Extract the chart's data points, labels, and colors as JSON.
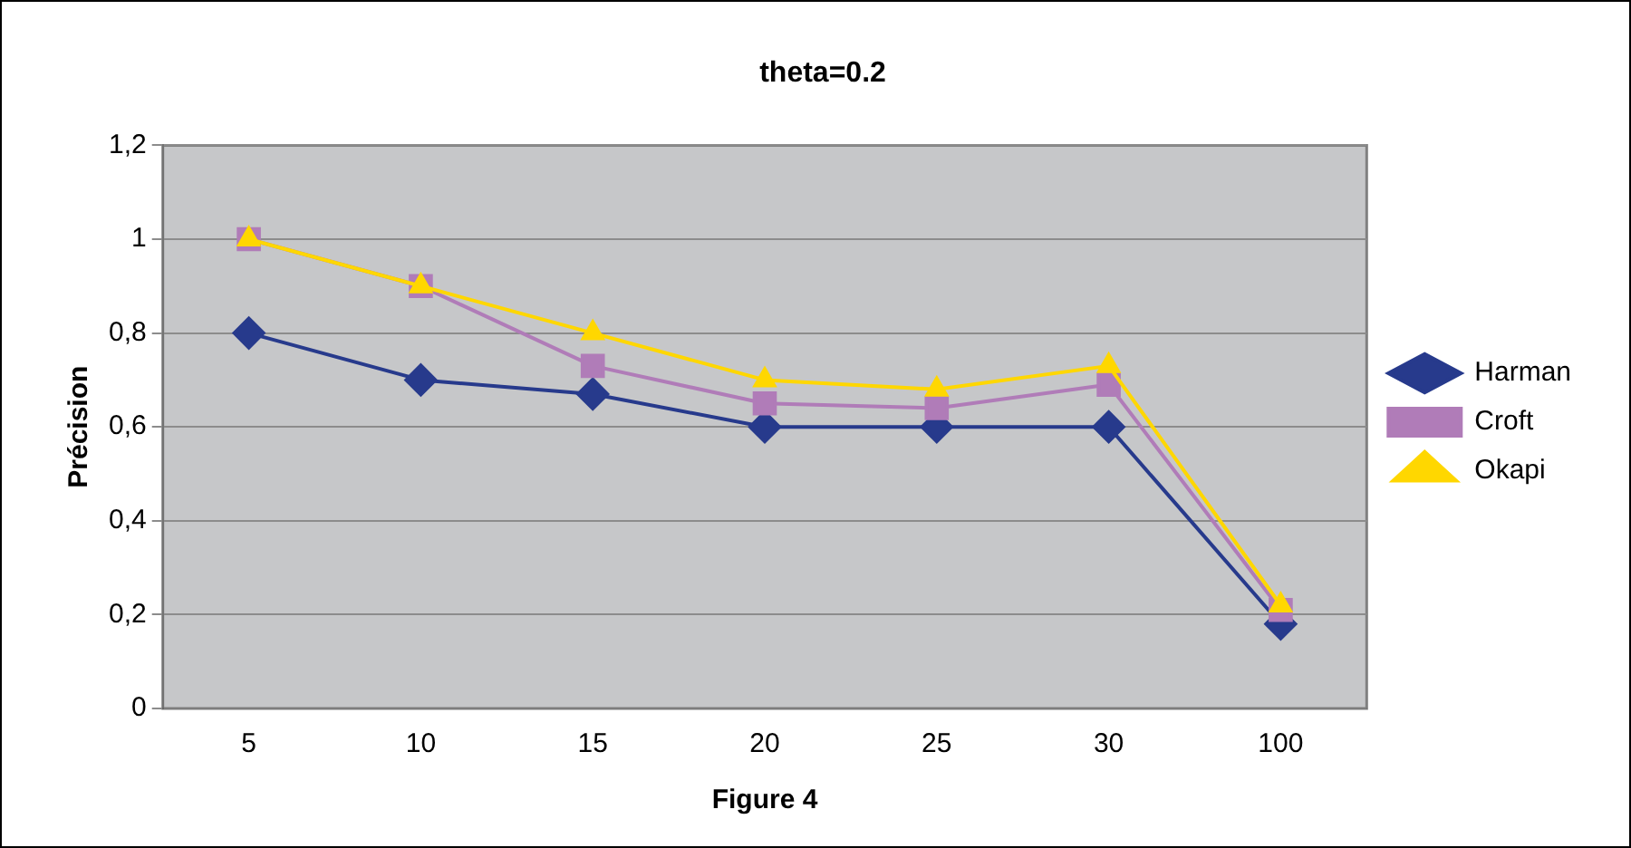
{
  "chart_data": {
    "type": "line",
    "title": "theta=0.2",
    "xlabel": "Figure 4",
    "ylabel": "Précision",
    "categories": [
      "5",
      "10",
      "15",
      "20",
      "25",
      "30",
      "100"
    ],
    "series": [
      {
        "name": "Harman",
        "color": "#273a8c",
        "marker": "diamond",
        "values": [
          0.8,
          0.7,
          0.67,
          0.6,
          0.6,
          0.6,
          0.18
        ]
      },
      {
        "name": "Croft",
        "color": "#b07cb8",
        "marker": "square",
        "values": [
          1,
          0.9,
          0.73,
          0.65,
          0.64,
          0.69,
          0.21
        ]
      },
      {
        "name": "Okapi",
        "color": "#ffd700",
        "marker": "triangle",
        "values": [
          1,
          0.9,
          0.8,
          0.7,
          0.68,
          0.73,
          0.22
        ]
      }
    ],
    "ylim": [
      0,
      1.2
    ],
    "yticks": [
      0,
      {
        "value": 0.2,
        "label": "0,2"
      },
      {
        "value": 0.4,
        "label": "0,4"
      },
      {
        "value": 0.6,
        "label": "0,6"
      },
      {
        "value": 0.8,
        "label": "0,8"
      },
      1,
      {
        "value": 1.2,
        "label": "1,2"
      }
    ],
    "grid": "y",
    "legend": "right"
  }
}
